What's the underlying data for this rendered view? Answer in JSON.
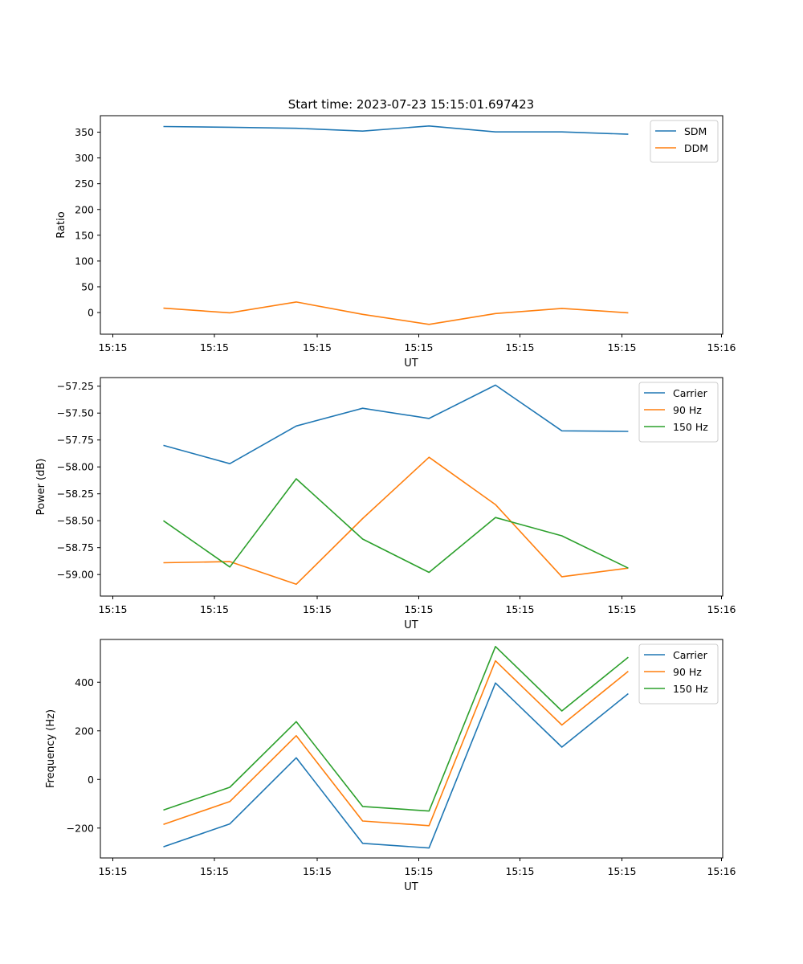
{
  "figure": {
    "title": "Start time: 2023-07-23 15:15:01.697423"
  },
  "chart_data": [
    {
      "type": "line",
      "id": "ratio",
      "xlabel": "UT",
      "ylabel": "Ratio",
      "x_tick_labels": [
        "15:15",
        "15:15",
        "15:15",
        "15:15",
        "15:15",
        "15:15",
        "15:15"
      ],
      "x_tick_labels_extra": [
        "15:16"
      ],
      "y_ticks": [
        0,
        50,
        100,
        150,
        200,
        250,
        300,
        350
      ],
      "y_tick_labels": [
        "0",
        "50",
        "100",
        "150",
        "200",
        "250",
        "300",
        "350"
      ],
      "ylim": [
        -42,
        382
      ],
      "legend": "top-right",
      "series": [
        {
          "name": "SDM",
          "color": "#1f77b4",
          "values": [
            361,
            359.5,
            357.5,
            352,
            362,
            350.5,
            350.5,
            346
          ]
        },
        {
          "name": "DDM",
          "color": "#ff7f0e",
          "values": [
            8.5,
            -0.5,
            20.5,
            -3.5,
            -23,
            -2,
            8,
            -0.5
          ]
        }
      ]
    },
    {
      "type": "line",
      "id": "power",
      "xlabel": "UT",
      "ylabel": "Power (dB)",
      "x_tick_labels": [
        "15:15",
        "15:15",
        "15:15",
        "15:15",
        "15:15",
        "15:15",
        "15:15"
      ],
      "x_tick_labels_extra": [
        "15:16"
      ],
      "y_ticks": [
        -59.0,
        -58.75,
        -58.5,
        -58.25,
        -58.0,
        -57.75,
        -57.5,
        -57.25
      ],
      "y_tick_labels": [
        "−59.00",
        "−58.75",
        "−58.50",
        "−58.25",
        "−58.00",
        "−57.75",
        "−57.50",
        "−57.25"
      ],
      "ylim": [
        -59.2,
        -57.17
      ],
      "legend": "top-right",
      "series": [
        {
          "name": "Carrier",
          "color": "#1f77b4",
          "values": [
            -57.8,
            -57.97,
            -57.62,
            -57.455,
            -57.55,
            -57.24,
            -57.665,
            -57.67
          ]
        },
        {
          "name": "90 Hz",
          "color": "#ff7f0e",
          "values": [
            -58.89,
            -58.88,
            -59.09,
            -58.48,
            -57.91,
            -58.35,
            -59.02,
            -58.94
          ]
        },
        {
          "name": "150 Hz",
          "color": "#2ca02c",
          "values": [
            -58.5,
            -58.93,
            -58.11,
            -58.67,
            -58.98,
            -58.47,
            -58.64,
            -58.94
          ]
        }
      ]
    },
    {
      "type": "line",
      "id": "frequency",
      "xlabel": "UT",
      "ylabel": "Frequency (Hz)",
      "x_tick_labels": [
        "15:15",
        "15:15",
        "15:15",
        "15:15",
        "15:15",
        "15:15",
        "15:15"
      ],
      "x_tick_labels_extra": [
        "15:16"
      ],
      "y_ticks": [
        -200,
        0,
        200,
        400
      ],
      "y_tick_labels": [
        "−200",
        "0",
        "200",
        "400"
      ],
      "ylim": [
        -323,
        576
      ],
      "legend": "top-right",
      "series": [
        {
          "name": "Carrier",
          "color": "#1f77b4",
          "values": [
            -277,
            -183,
            89,
            -263,
            -282,
            397,
            133,
            353
          ]
        },
        {
          "name": "90 Hz",
          "color": "#ff7f0e",
          "values": [
            -185,
            -91,
            180,
            -171,
            -190,
            488,
            224,
            445
          ]
        },
        {
          "name": "150 Hz",
          "color": "#2ca02c",
          "values": [
            -126,
            -32,
            238,
            -111,
            -130,
            547,
            282,
            503
          ]
        }
      ]
    }
  ]
}
